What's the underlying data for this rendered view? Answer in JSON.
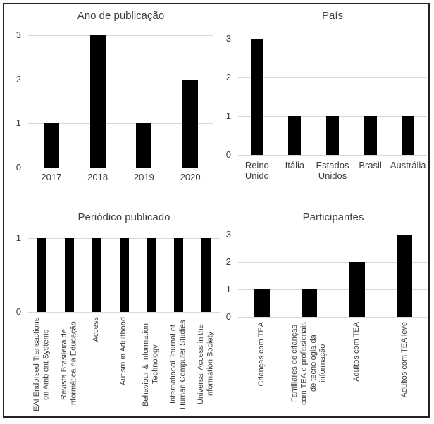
{
  "colors": {
    "bar": "#000000",
    "gridline": "#d9d9d9",
    "axis_text": "#3d3d3d",
    "frame_border": "#222222",
    "background": "#ffffff"
  },
  "chart_data": [
    {
      "id": "ano-de-publicacao",
      "type": "bar",
      "title": "Ano de publicação",
      "categories": [
        "2017",
        "2018",
        "2019",
        "2020"
      ],
      "values": [
        1,
        3,
        1,
        2
      ],
      "ylim": [
        0,
        3
      ],
      "yticks": [
        0,
        1,
        2,
        3
      ],
      "grid": true,
      "legend": "none",
      "category_label_orientation": "horizontal"
    },
    {
      "id": "pais",
      "type": "bar",
      "title": "País",
      "categories": [
        "Reino Unido",
        "Itália",
        "Estados Unidos",
        "Brasil",
        "Austrália"
      ],
      "values": [
        3,
        1,
        1,
        1,
        1
      ],
      "ylim": [
        0,
        3
      ],
      "yticks": [
        0,
        1,
        2,
        3
      ],
      "grid": true,
      "legend": "none",
      "category_label_orientation": "horizontal"
    },
    {
      "id": "periodico-publicado",
      "type": "bar",
      "title": "Periódico publicado",
      "categories": [
        "EAI Endorsed Transactions on Ambient Systems",
        "Revista Brasileira de Informática na Educação",
        "Access",
        "Autism in Adulthood",
        "Behaviour & Information Technology",
        "International Journal of Human Computer Studies",
        "Universal Access in the Information Society"
      ],
      "values": [
        1,
        1,
        1,
        1,
        1,
        1,
        1
      ],
      "ylim": [
        0,
        1
      ],
      "yticks": [
        0,
        1
      ],
      "grid": true,
      "legend": "none",
      "category_label_orientation": "vertical"
    },
    {
      "id": "participantes",
      "type": "bar",
      "title": "Participantes",
      "categories": [
        "Crianças com TEA",
        "Familiares de crianças com TEA e profissionais de tecnologia da informação",
        "Adultos com TEA",
        "Adultos com TEA leve"
      ],
      "values": [
        1,
        1,
        2,
        3
      ],
      "ylim": [
        0,
        3
      ],
      "yticks": [
        0,
        1,
        2,
        3
      ],
      "grid": true,
      "legend": "none",
      "category_label_orientation": "vertical"
    }
  ]
}
